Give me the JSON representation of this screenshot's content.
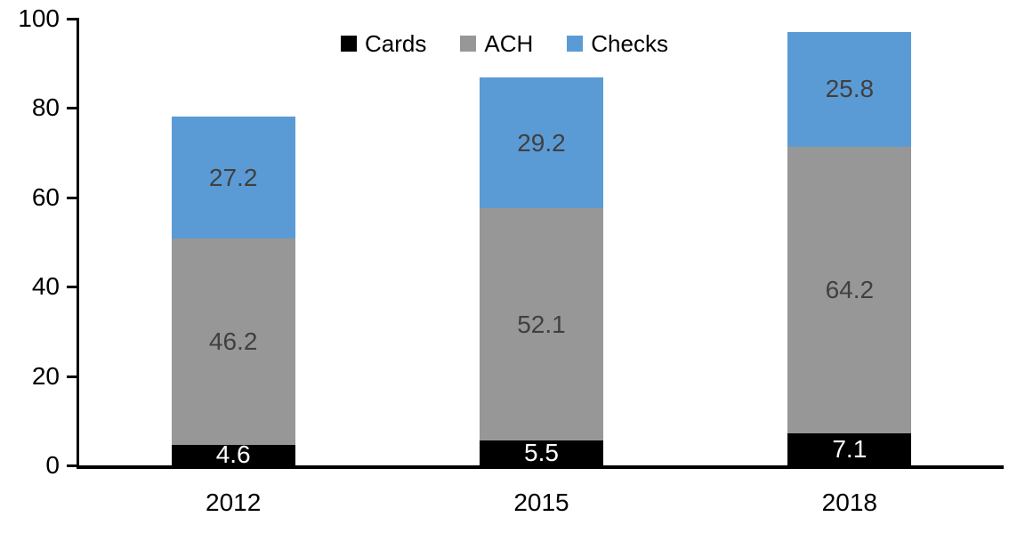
{
  "chart_data": {
    "type": "bar",
    "stacked": true,
    "title": "",
    "xlabel": "",
    "ylabel": "",
    "ylim": [
      0,
      100
    ],
    "yticks": [
      "0",
      "20",
      "40",
      "60",
      "80",
      "100"
    ],
    "grid": false,
    "legend_position": "top",
    "categories": [
      "2012",
      "2015",
      "2018"
    ],
    "series": [
      {
        "name": "Cards",
        "color": "#000000",
        "label_color": "#ffffff",
        "values": [
          4.6,
          5.5,
          7.1
        ]
      },
      {
        "name": "ACH",
        "color": "#979797",
        "label_color": "#404040",
        "values": [
          46.2,
          52.1,
          64.2
        ]
      },
      {
        "name": "Checks",
        "color": "#5B9BD5",
        "label_color": "#404040",
        "values": [
          27.2,
          29.2,
          25.8
        ]
      }
    ],
    "totals": [
      78.0,
      86.8,
      97.1
    ]
  }
}
